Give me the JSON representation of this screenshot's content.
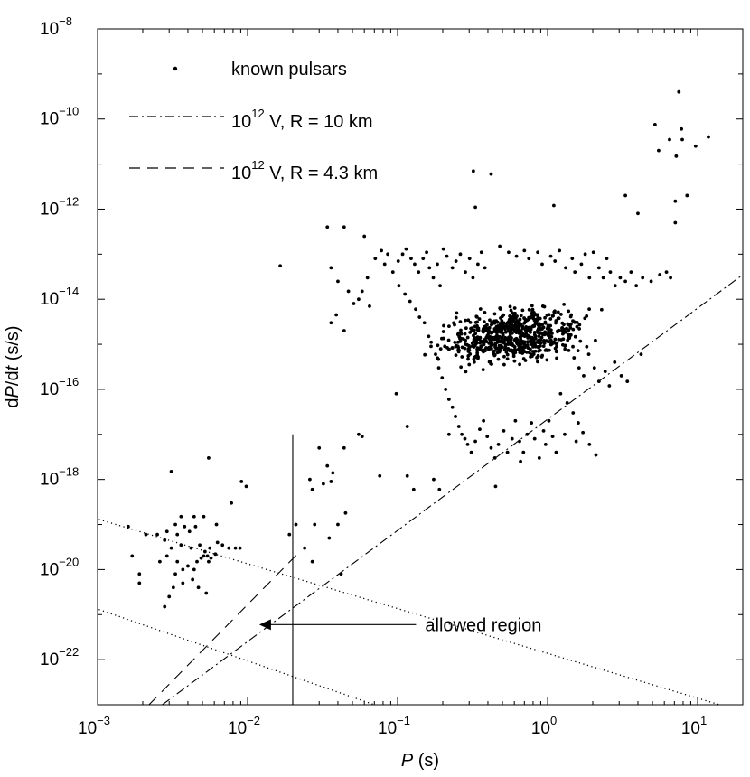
{
  "chart_data": {
    "type": "scatter",
    "xlabel": {
      "var": "P",
      "unit": " (s)"
    },
    "ylabel": {
      "prefix": "d",
      "var": "P",
      "mid": "/d",
      "var2": "t",
      "unit": " (s/s)"
    },
    "x_scale": "log",
    "y_scale": "log",
    "xlim": [
      0.001,
      20
    ],
    "ylim": [
      1e-23,
      1e-08
    ],
    "x_ticks": [
      {
        "base": "10",
        "exp": "−3",
        "value": 0.001
      },
      {
        "base": "10",
        "exp": "−2",
        "value": 0.01
      },
      {
        "base": "10",
        "exp": "−1",
        "value": 0.1
      },
      {
        "base": "10",
        "exp": "0",
        "value": 1
      },
      {
        "base": "10",
        "exp": "1",
        "value": 10
      }
    ],
    "y_ticks": [
      {
        "base": "10",
        "exp": "−22",
        "value": 1e-22
      },
      {
        "base": "10",
        "exp": "−20",
        "value": 1e-20
      },
      {
        "base": "10",
        "exp": "−18",
        "value": 1e-18
      },
      {
        "base": "10",
        "exp": "−16",
        "value": 1e-16
      },
      {
        "base": "10",
        "exp": "−14",
        "value": 1e-14
      },
      {
        "base": "10",
        "exp": "−12",
        "value": 1e-12
      },
      {
        "base": "10",
        "exp": "−10",
        "value": 1e-10
      },
      {
        "base": "10",
        "exp": "−8",
        "value": 1e-08
      }
    ],
    "grid": false,
    "legend_placement": "top-left",
    "legend": [
      {
        "marker": "dot",
        "label": "known pulsars"
      },
      {
        "marker": "dash-dot",
        "label_base": "10",
        "label_exp": "12",
        "label_rest": " V, R =  10 km"
      },
      {
        "marker": "dashed",
        "label_base": "10",
        "label_exp": "12",
        "label_rest": " V, R = 4.3 km"
      }
    ],
    "lines": [
      {
        "name": "dash-dot",
        "style": "dash-dot",
        "x": [
          0.0027,
          20
        ],
        "y": [
          1e-23,
          3.5e-14
        ]
      },
      {
        "name": "dashed",
        "style": "dashed",
        "x": [
          0.0022,
          0.022
        ],
        "y": [
          1e-23,
          2.4e-20
        ]
      },
      {
        "name": "dotted upper",
        "style": "dotted",
        "x": [
          0.00102,
          14
        ],
        "y": [
          1.3e-19,
          1e-23
        ]
      },
      {
        "name": "dotted lower",
        "style": "dotted",
        "x": [
          0.00102,
          0.07
        ],
        "y": [
          1.3e-21,
          1e-23
        ]
      },
      {
        "name": "vertical",
        "style": "solid",
        "x": [
          0.02,
          0.02
        ],
        "y": [
          1e-23,
          1e-17
        ]
      }
    ],
    "annotation": {
      "text": "allowed region",
      "arrow_from": [
        0.09,
        6e-22
      ],
      "arrow_to": [
        0.011,
        6e-22
      ]
    },
    "series": [
      {
        "marker": "dot",
        "points": [
          [
            7.5,
            4e-10
          ],
          [
            5.2,
            7.5e-11
          ],
          [
            6.5,
            3.5e-11
          ],
          [
            7.8,
            6e-11
          ],
          [
            7.9,
            3.5e-11
          ],
          [
            11.8,
            4e-11
          ],
          [
            9.7,
            2.5e-11
          ],
          [
            5.5,
            2e-11
          ],
          [
            7.2,
            1.5e-11
          ],
          [
            0.32,
            7e-12
          ],
          [
            0.42,
            6e-12
          ],
          [
            8.5,
            2e-12
          ],
          [
            3.3,
            2e-12
          ],
          [
            7.1,
            1.5e-12
          ],
          [
            1.1,
            1.2e-12
          ],
          [
            0.33,
            1.1e-12
          ],
          [
            4,
            8e-13
          ],
          [
            7.1,
            5e-13
          ],
          [
            0.0165,
            5.5e-14
          ],
          [
            0.034,
            4e-13
          ],
          [
            0.044,
            4e-13
          ],
          [
            0.06,
            2.5e-13
          ],
          [
            0.036,
            3e-15
          ],
          [
            0.039,
            4.5e-15
          ],
          [
            0.044,
            2e-15
          ],
          [
            0.051,
            8e-15
          ],
          [
            0.058,
            1.5e-14
          ],
          [
            0.063,
            3e-14
          ],
          [
            0.055,
            1e-17
          ],
          [
            0.058,
            9e-18
          ],
          [
            0.044,
            5e-18
          ],
          [
            0.03,
            5e-18
          ],
          [
            0.034,
            2e-18
          ],
          [
            0.037,
            1.4e-18
          ],
          [
            0.036,
            9e-19
          ],
          [
            0.032,
            8e-19
          ],
          [
            0.026,
            1e-18
          ],
          [
            0.027,
            6e-19
          ],
          [
            0.076,
            1.2e-18
          ],
          [
            0.116,
            1.2e-18
          ],
          [
            0.128,
            6e-19
          ],
          [
            0.174,
            1e-18
          ],
          [
            0.19,
            6e-19
          ],
          [
            0.098,
            8e-17
          ],
          [
            0.116,
            1.5e-17
          ],
          [
            0.22,
            1e-17
          ],
          [
            0.045,
            1.8e-19
          ],
          [
            0.04,
            1e-19
          ],
          [
            0.035,
            5e-20
          ],
          [
            0.028,
            1e-19
          ],
          [
            0.021,
            1e-19
          ],
          [
            0.019,
            6e-20
          ],
          [
            0.024,
            3e-20
          ],
          [
            0.027,
            1.5e-20
          ],
          [
            0.042,
            8e-21
          ],
          [
            0.0055,
            3e-18
          ],
          [
            0.0031,
            1.5e-18
          ],
          [
            0.0091,
            9e-19
          ],
          [
            0.0098,
            7e-19
          ],
          [
            0.0078,
            3e-19
          ],
          [
            0.0062,
            1e-19
          ],
          [
            0.0051,
            1.5e-19
          ],
          [
            0.0044,
            1.5e-19
          ],
          [
            0.0036,
            1.5e-19
          ],
          [
            0.0033,
            1e-19
          ],
          [
            0.0038,
            9e-20
          ],
          [
            0.0045,
            9e-20
          ],
          [
            0.0041,
            7e-20
          ],
          [
            0.0034,
            6e-20
          ],
          [
            0.0029,
            7e-20
          ],
          [
            0.0025,
            6e-20
          ],
          [
            0.0021,
            6e-20
          ],
          [
            0.0016,
            9e-20
          ],
          [
            0.0028,
            4.5e-20
          ],
          [
            0.0031,
            3e-20
          ],
          [
            0.0036,
            3.5e-20
          ],
          [
            0.0042,
            3e-20
          ],
          [
            0.0048,
            3.5e-20
          ],
          [
            0.0052,
            2.5e-20
          ],
          [
            0.0056,
            3e-20
          ],
          [
            0.0063,
            4e-20
          ],
          [
            0.0068,
            3.5e-20
          ],
          [
            0.0075,
            3e-20
          ],
          [
            0.0083,
            3e-20
          ],
          [
            0.0089,
            3e-20
          ],
          [
            0.0051,
            2e-20
          ],
          [
            0.0054,
            2e-20
          ],
          [
            0.0049,
            1.8e-20
          ],
          [
            0.0046,
            1.5e-20
          ],
          [
            0.0044,
            1e-20
          ],
          [
            0.004,
            1.2e-20
          ],
          [
            0.0037,
            1e-20
          ],
          [
            0.0034,
            1.5e-20
          ],
          [
            0.0029,
            2e-20
          ],
          [
            0.0033,
            8e-21
          ],
          [
            0.0037,
            5e-21
          ],
          [
            0.0032,
            4e-21
          ],
          [
            0.0047,
            4e-21
          ],
          [
            0.003,
            2.5e-21
          ],
          [
            0.0053,
            3e-21
          ],
          [
            0.0043,
            6e-21
          ],
          [
            0.0028,
            1.5e-21
          ],
          [
            0.0017,
            2e-20
          ],
          [
            0.0019,
            8e-21
          ],
          [
            0.0019,
            5e-21
          ],
          [
            0.0055,
            1.5e-20
          ],
          [
            0.0057,
            1.8e-20
          ],
          [
            0.0061,
            2.2e-20
          ],
          [
            0.0026,
            1.5e-20
          ],
          [
            0.036,
            5e-14
          ],
          [
            0.04,
            2.5e-14
          ],
          [
            0.047,
            1.5e-14
          ],
          [
            0.055,
            1e-14
          ],
          [
            0.065,
            7e-15
          ],
          [
            0.071,
            8e-14
          ],
          [
            0.078,
            1.2e-13
          ],
          [
            0.086,
            1e-13
          ],
          [
            0.082,
            6e-14
          ],
          [
            0.093,
            4e-14
          ],
          [
            0.101,
            7e-14
          ],
          [
            0.108,
            1e-13
          ],
          [
            0.114,
            1.3e-13
          ],
          [
            0.123,
            8e-14
          ],
          [
            0.13,
            6e-14
          ],
          [
            0.138,
            4e-14
          ],
          [
            0.148,
            8e-14
          ],
          [
            0.156,
            1.1e-13
          ],
          [
            0.163,
            5e-14
          ],
          [
            0.173,
            3e-14
          ],
          [
            0.184,
            6e-14
          ],
          [
            0.192,
            2e-14
          ],
          [
            0.202,
            1.3e-13
          ],
          [
            0.213,
            9e-14
          ],
          [
            0.232,
            5e-14
          ],
          [
            0.245,
            7e-14
          ],
          [
            0.262,
            1e-13
          ],
          [
            0.283,
            4e-14
          ],
          [
            0.302,
            8e-14
          ],
          [
            0.318,
            3e-14
          ],
          [
            0.343,
            6e-14
          ],
          [
            0.362,
            1.1e-13
          ],
          [
            0.382,
            5e-14
          ],
          [
            0.102,
            2e-14
          ],
          [
            0.112,
            1.3e-14
          ],
          [
            0.121,
            9e-15
          ],
          [
            0.132,
            6e-15
          ],
          [
            0.14,
            4e-15
          ],
          [
            0.151,
            3e-15
          ],
          [
            0.161,
            1.5e-15
          ],
          [
            0.167,
            9e-16
          ],
          [
            0.179,
            6e-16
          ],
          [
            0.188,
            3e-16
          ],
          [
            0.198,
            1.8e-16
          ],
          [
            0.209,
            1e-16
          ],
          [
            0.22,
            6e-17
          ],
          [
            0.232,
            4e-17
          ],
          [
            0.243,
            2.5e-17
          ],
          [
            0.256,
            1.5e-17
          ],
          [
            0.268,
            1e-17
          ],
          [
            0.281,
            8e-18
          ],
          [
            0.293,
            6e-18
          ],
          [
            0.31,
            4e-18
          ],
          [
            0.33,
            7e-18
          ],
          [
            0.353,
            1.3e-17
          ],
          [
            0.374,
            2e-17
          ],
          [
            0.396,
            9e-18
          ],
          [
            0.42,
            5e-18
          ],
          [
            0.445,
            3e-18
          ],
          [
            0.47,
            6e-18
          ],
          [
            0.51,
            1.2e-17
          ],
          [
            0.54,
            4e-18
          ],
          [
            0.58,
            8e-18
          ],
          [
            0.61,
            2e-17
          ],
          [
            0.65,
            7e-18
          ],
          [
            0.69,
            4e-18
          ],
          [
            0.73,
            1e-17
          ],
          [
            0.78,
            1.8e-17
          ],
          [
            0.82,
            8e-18
          ],
          [
            0.88,
            3e-18
          ],
          [
            0.94,
            1.2e-17
          ],
          [
            0.97,
            6e-18
          ],
          [
            1.02,
            2e-17
          ],
          [
            1.08,
            9e-18
          ],
          [
            1.14,
            4e-18
          ],
          [
            0.45,
            7e-19
          ],
          [
            0.66,
            2.5e-18
          ],
          [
            0.48,
            1.5e-13
          ],
          [
            0.55,
            1.1e-13
          ],
          [
            0.62,
            9e-14
          ],
          [
            0.7,
            1.2e-13
          ],
          [
            0.75,
            8e-14
          ],
          [
            0.86,
            1.1e-13
          ],
          [
            0.92,
            6e-14
          ],
          [
            1.05,
            9e-14
          ],
          [
            1.12,
            7e-14
          ],
          [
            1.2,
            1.2e-13
          ],
          [
            1.32,
            5e-14
          ],
          [
            1.46,
            8e-14
          ],
          [
            1.52,
            4e-14
          ],
          [
            1.68,
            6e-14
          ],
          [
            1.78,
            1e-13
          ],
          [
            1.9,
            3e-14
          ],
          [
            2.02,
            1.1e-13
          ],
          [
            2.2,
            5e-14
          ],
          [
            2.35,
            3e-14
          ],
          [
            2.48,
            8e-14
          ],
          [
            2.62,
            4e-14
          ],
          [
            2.82,
            2e-14
          ],
          [
            3.05,
            3e-14
          ],
          [
            3.3,
            2.5e-14
          ],
          [
            3.6,
            4e-14
          ],
          [
            3.9,
            2e-14
          ],
          [
            4.3,
            3e-14
          ],
          [
            4.9,
            2.5e-14
          ],
          [
            5.6,
            3.5e-14
          ],
          [
            6.2,
            4e-14
          ],
          [
            6.6,
            3e-14
          ],
          [
            1.5,
            5e-16
          ],
          [
            1.62,
            3e-16
          ],
          [
            1.74,
            2e-16
          ],
          [
            1.88,
            6e-16
          ],
          [
            2.05,
            3e-16
          ],
          [
            2.2,
            1.5e-16
          ],
          [
            2.42,
            2.5e-16
          ],
          [
            2.58,
            1.2e-16
          ],
          [
            2.8,
            4e-16
          ],
          [
            3.1,
            2e-16
          ],
          [
            3.4,
            1.5e-16
          ],
          [
            4.2,
            6e-16
          ],
          [
            1.22,
            8e-17
          ],
          [
            1.35,
            5e-17
          ],
          [
            1.48,
            3e-17
          ],
          [
            1.6,
            1.8e-17
          ],
          [
            1.72,
            1.1e-17
          ],
          [
            1.9,
            6e-18
          ],
          [
            2.1,
            3.5e-18
          ],
          [
            1.3,
            1e-17
          ],
          [
            1.55,
            7e-18
          ]
        ],
        "dense_cluster": {
          "log10_x_range": [
            -0.9,
            0.45
          ],
          "log10_y_range": [
            -15.6,
            -14.0
          ],
          "count": 700,
          "seed": 12
        }
      }
    ]
  }
}
